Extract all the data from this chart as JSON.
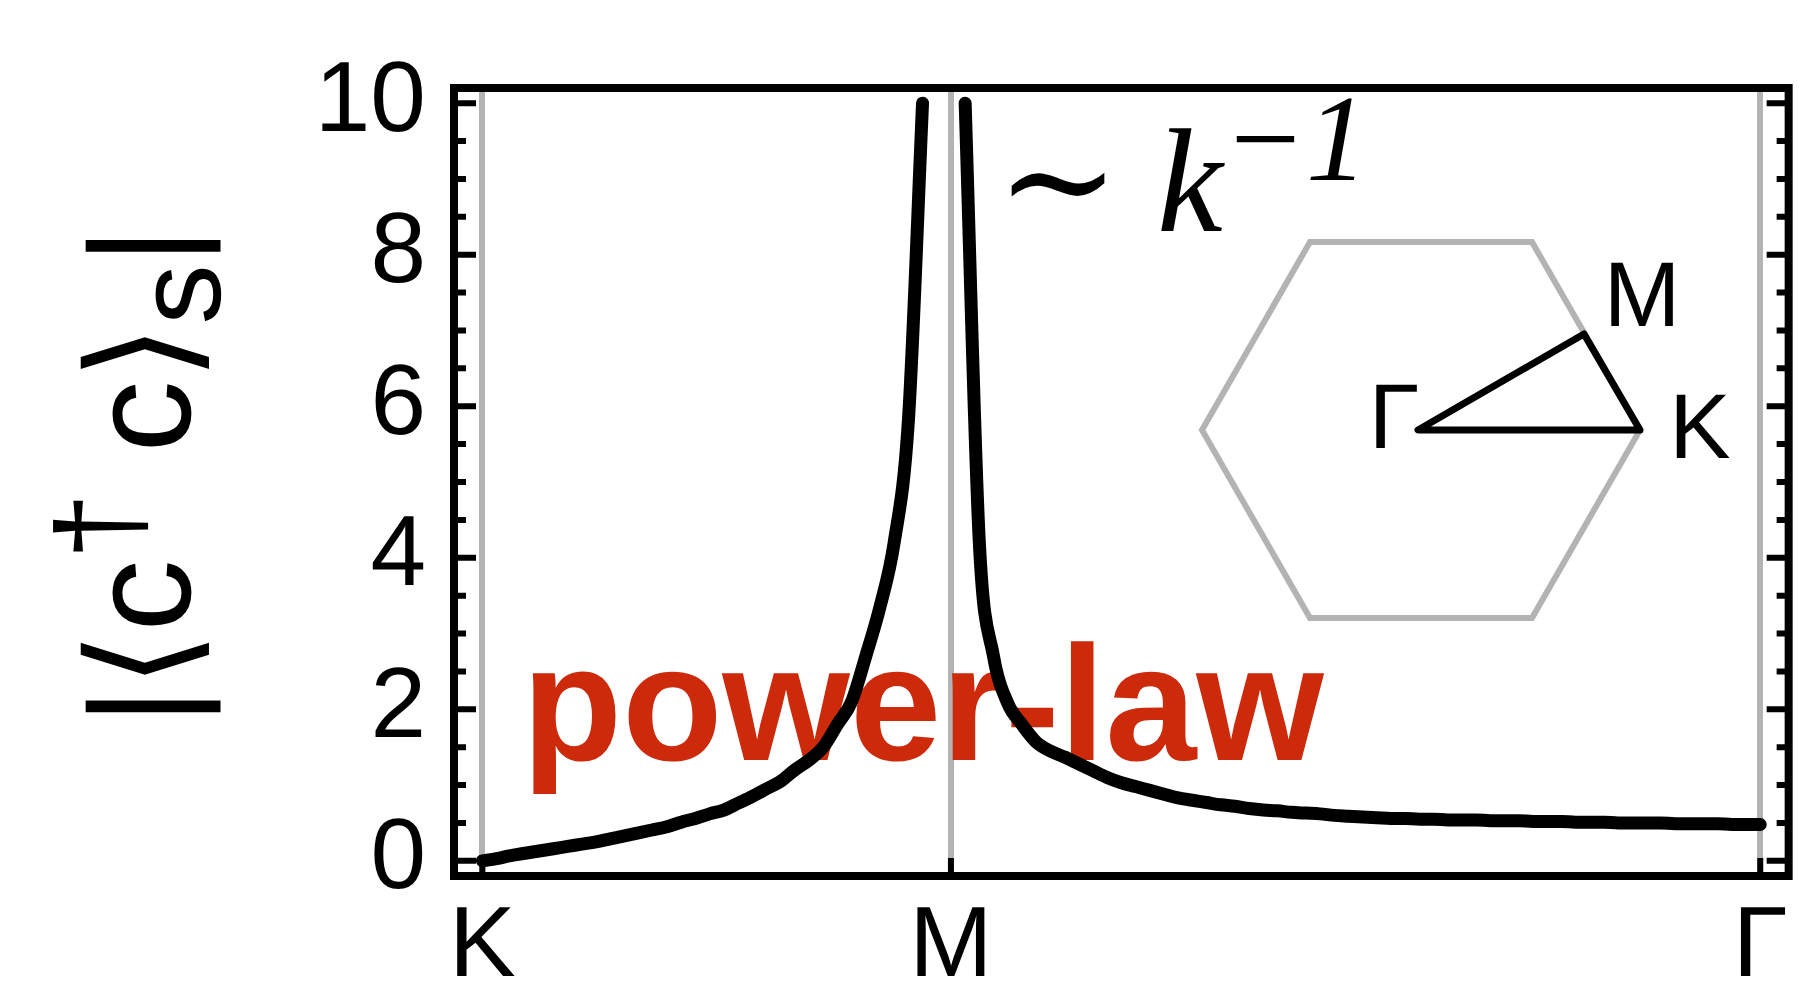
{
  "chart_data": {
    "type": "line",
    "ylabel": "|⟨c$^{†}$ c⟩$_{s}$|",
    "annotations": [
      "∼ k$^{−1}$",
      "power-law",
      "Γ",
      "M",
      "K"
    ],
    "categories": [
      "K",
      null,
      null,
      null,
      null,
      null,
      null,
      null,
      null,
      null,
      null,
      null,
      null,
      null,
      null,
      null,
      null,
      null,
      null,
      null,
      null,
      null,
      null,
      null,
      null,
      null,
      null,
      null,
      null,
      null,
      null,
      null,
      null,
      "M",
      null,
      null,
      null,
      null,
      null,
      null,
      null,
      null,
      null,
      null,
      null,
      null,
      null,
      null,
      null,
      null,
      null,
      null,
      null,
      null,
      null,
      null,
      null,
      null,
      null,
      null,
      null,
      null,
      null,
      null,
      null,
      null,
      null,
      null,
      null,
      null,
      null,
      null,
      null,
      null,
      null,
      null,
      null,
      null,
      null,
      null,
      null,
      null,
      null,
      null,
      null,
      null,
      null,
      null,
      null,
      null,
      "Γ"
    ],
    "series": [
      {
        "color": "#000000",
        "values": [
          0,
          0.03,
          0.07,
          0.1,
          0.13,
          0.16,
          0.19,
          0.22,
          0.25,
          0.29,
          0.33,
          0.37,
          0.41,
          0.45,
          0.51,
          0.56,
          0.62,
          0.67,
          0.76,
          0.85,
          0.95,
          1.05,
          1.2,
          1.33,
          1.5,
          1.8,
          2.1,
          2.7,
          3.35,
          4.2,
          5.8,
          10,
          null,
          null,
          10,
          4.2,
          2.7,
          2.08,
          1.8,
          1.57,
          1.45,
          1.37,
          1.28,
          1.19,
          1.1,
          1.03,
          0.98,
          0.93,
          0.88,
          0.83,
          0.8,
          0.77,
          0.74,
          0.72,
          0.69,
          0.67,
          0.66,
          0.64,
          0.63,
          0.62,
          0.6,
          0.59,
          0.58,
          0.57,
          0.56,
          0.56,
          0.55,
          0.55,
          0.54,
          0.54,
          0.54,
          0.53,
          0.53,
          0.53,
          0.52,
          0.52,
          0.52,
          0.51,
          0.51,
          0.51,
          0.5,
          0.5,
          0.5,
          0.5,
          0.49,
          0.49,
          0.49,
          0.49,
          0.48,
          0.48,
          0.48
        ]
      }
    ],
    "ylim": [
      -0.2,
      10.2
    ],
    "yticks": [
      0,
      {
        "value": 0.5,
        "label": null
      },
      {
        "value": 1,
        "label": null
      },
      {
        "value": 1.5,
        "label": null
      },
      2,
      {
        "value": 2.5,
        "label": null
      },
      {
        "value": 3,
        "label": null
      },
      {
        "value": 3.5,
        "label": null
      },
      4,
      {
        "value": 4.5,
        "label": null
      },
      {
        "value": 5,
        "label": null
      },
      {
        "value": 5.5,
        "label": null
      },
      6,
      {
        "value": 6.5,
        "label": null
      },
      {
        "value": 7,
        "label": null
      },
      {
        "value": 7.5,
        "label": null
      },
      8,
      {
        "value": 8.5,
        "label": null
      },
      {
        "value": 9,
        "label": null
      },
      {
        "value": 9.5,
        "label": null
      },
      10
    ],
    "grid": "x",
    "marker": "none"
  }
}
